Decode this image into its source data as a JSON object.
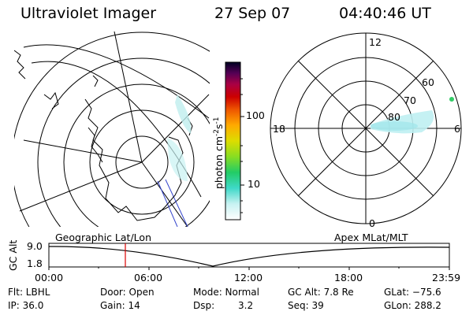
{
  "header": {
    "instrument": "Ultraviolet Imager",
    "date": "27 Sep 07",
    "time": "04:40:46 UT"
  },
  "colorbar": {
    "unit_label": "photon cm",
    "unit_exp1": "-2",
    "unit_mid": "s",
    "unit_exp2": "-1",
    "tick_100": "100",
    "tick_10": "10"
  },
  "polar": {
    "mlt_12": "12",
    "mlt_18": "18",
    "mlt_6": "6",
    "mlt_0": "0",
    "lat_60": "60",
    "lat_70": "70",
    "lat_80": "80"
  },
  "timeline": {
    "left_label": "Geographic Lat/Lon",
    "right_label": "Apex MLat/MLT",
    "axis_label": "GC Alt",
    "ytick_top": "9.0",
    "ytick_bottom": "1.8",
    "xticks": [
      "00:00",
      "06:00",
      "12:00",
      "18:00",
      "23:59"
    ]
  },
  "footer": {
    "row1": {
      "flt": "Flt: LBHL",
      "door": "Door: Open",
      "mode": "Mode: Normal",
      "gcalt": "GC Alt: 7.8 Re",
      "glat": "GLat: −75.6"
    },
    "row2": {
      "ip": "IP: 36.0",
      "gain": "Gain: 14",
      "dsp_key": "Dsp:",
      "dsp_val": "3.2",
      "seq": "Seq: 39",
      "glon": "GLon: 288.2"
    }
  }
}
